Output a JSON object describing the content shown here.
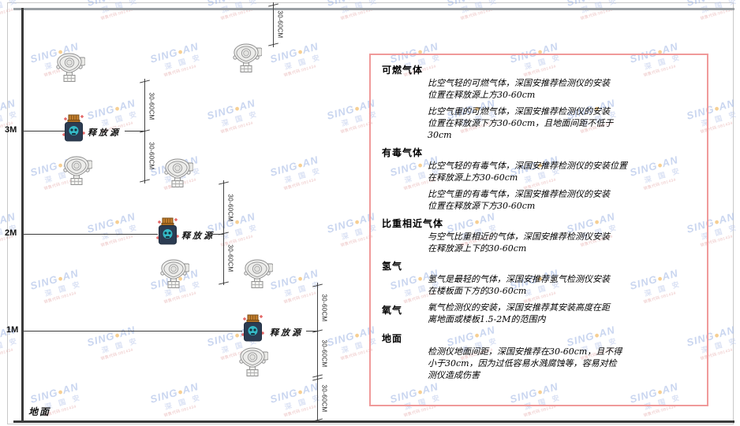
{
  "watermark": {
    "brand": "SING",
    "dot": "●",
    "brand2": "AN",
    "cn": "深 国 安",
    "code": "销售代码:081434"
  },
  "diagram": {
    "ground_label": "地面",
    "heights": [
      {
        "label": "3M"
      },
      {
        "label": "2M"
      },
      {
        "label": "1M"
      }
    ],
    "release_source_label": "释放源",
    "dim_label": "30-60CM"
  },
  "panel": {
    "sections": [
      {
        "heading": "可燃气体",
        "layout": "block",
        "paragraphs": [
          [
            "比空气轻的可燃气体，深国安推荐检测仪的安装",
            "位置在释放源上方30-60cm"
          ],
          [
            "比空气重的可燃气体，深国安推荐检测仪的安装",
            "位置在释放源下方30-60cm，且地面间距不低于",
            "30cm"
          ]
        ]
      },
      {
        "heading": "有毒气体",
        "layout": "block",
        "paragraphs": [
          [
            "比空气轻的有毒气体，深国安推荐检测仪的安装位置",
            "在释放源上方30-60cm"
          ],
          [
            "比空气重的有毒气体，深国安推荐检测仪的安装",
            "位置在释放源下方30-60cm"
          ]
        ]
      },
      {
        "heading": "比重相近气体",
        "layout": "block",
        "paragraphs": [
          [
            "与空气比重相近的气体，深国安推荐检测仪安装",
            "在释放源上下的30-60cm"
          ]
        ]
      },
      {
        "heading": "氢气",
        "layout": "block",
        "paragraphs": [
          [
            "氢气是最轻的气体，深国安推荐氢气检测仪安装",
            "在楼板面下方的30-60cm"
          ]
        ]
      },
      {
        "heading": "氧气",
        "layout": "inline",
        "paragraphs": [
          [
            "氧气检测仪的安装，深国安推荐其安装高度在距",
            "离地面或楼板1.5-2M的范围内"
          ]
        ]
      },
      {
        "heading": "地面",
        "layout": "block",
        "paragraphs": [
          [
            "检测仪地面间距，深国安推荐在30-60cm，且不得",
            "小于30cm，因为过低容易水溅腐蚀等，容易对检",
            "测仪造成伤害"
          ]
        ]
      }
    ]
  }
}
